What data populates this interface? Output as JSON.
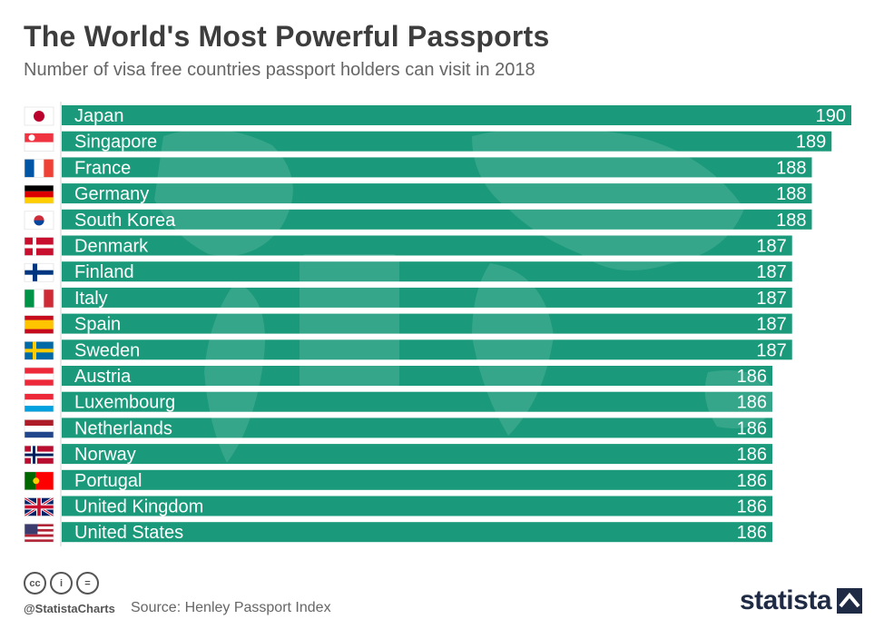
{
  "header": {
    "title": "The World's Most Powerful Passports",
    "subtitle": "Number of visa free countries passport holders can visit in 2018"
  },
  "chart_data": {
    "type": "bar",
    "orientation": "horizontal",
    "title": "The World's Most Powerful Passports",
    "subtitle": "Number of visa free countries passport holders can visit in 2018",
    "xlabel": "",
    "ylabel": "",
    "xlim": [
      0,
      190
    ],
    "grid": false,
    "bar_color": "#1a9a7a",
    "categories": [
      "Japan",
      "Singapore",
      "France",
      "Germany",
      "South Korea",
      "Denmark",
      "Finland",
      "Italy",
      "Spain",
      "Sweden",
      "Austria",
      "Luxembourg",
      "Netherlands",
      "Norway",
      "Portugal",
      "United Kingdom",
      "United States"
    ],
    "values": [
      190,
      189,
      188,
      188,
      188,
      187,
      187,
      187,
      187,
      187,
      186,
      186,
      186,
      186,
      186,
      186,
      186
    ],
    "flags": [
      "japan-flag",
      "singapore-flag",
      "france-flag",
      "germany-flag",
      "south-korea-flag",
      "denmark-flag",
      "finland-flag",
      "italy-flag",
      "spain-flag",
      "sweden-flag",
      "austria-flag",
      "luxembourg-flag",
      "netherlands-flag",
      "norway-flag",
      "portugal-flag",
      "united-kingdom-flag",
      "united-states-flag"
    ]
  },
  "footer": {
    "license_icons": [
      "cc-icon",
      "by-icon",
      "nd-icon"
    ],
    "license_glyphs": [
      "cc",
      "i",
      "="
    ],
    "handle": "@StatistaCharts",
    "source": "Source: Henley Passport Index",
    "brand": "statista"
  }
}
